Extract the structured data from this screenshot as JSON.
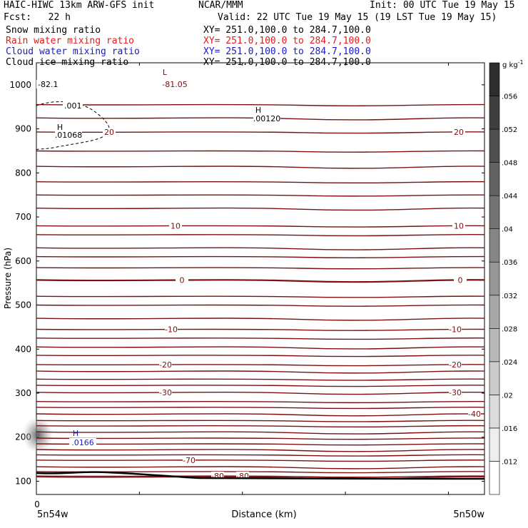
{
  "header": {
    "title_left": "HAIC-HIWC 13km ARW-GFS init",
    "title_center": "NCAR/MMM",
    "init": "Init: 00 UTC Tue 19 May 15",
    "fcst": "Fcst:   22 h",
    "valid": "Valid: 22 UTC Tue 19 May 15 (19 LST Tue 19 May 15)",
    "fields": [
      {
        "name": "Snow mixing ratio",
        "xy": "XY= 251.0,100.0 to 284.7,100.0",
        "color": "#000000"
      },
      {
        "name": "Rain water mixing ratio",
        "xy": "XY= 251.0,100.0 to 284.7,100.0",
        "color": "#e41a1a"
      },
      {
        "name": "Cloud water mixing ratio",
        "xy": "XY= 251.0,100.0 to 284.7,100.0",
        "color": "#1a1acc"
      },
      {
        "name": "Cloud ice mixing ratio",
        "xy": "XY= 251.0,100.0 to 284.7,100.0",
        "color": "#000000"
      }
    ]
  },
  "chart_data": {
    "type": "contour",
    "ylabel": "Pressure (hPa)",
    "xlabel": "Distance (km)",
    "x_origin_label": "0",
    "x_left_label": "5n54w",
    "x_right_label": "5n50w",
    "ylim": [
      1050,
      70
    ],
    "y_ticks": [
      100,
      200,
      300,
      400,
      500,
      600,
      700,
      800,
      900,
      1000
    ],
    "colorbar": {
      "unit": "g kg",
      "unit_exp": "-1",
      "ticks": [
        ".012",
        ".016",
        ".02",
        ".024",
        ".028",
        ".032",
        ".036",
        ".04",
        ".044",
        ".048",
        ".052",
        ".056"
      ]
    },
    "temperature_contours": [
      {
        "label": "-80",
        "pressure": 112
      },
      {
        "label": "-70",
        "pressure": 148
      },
      {
        "label": "-40",
        "pressure": 253
      },
      {
        "label": "-30",
        "pressure": 302
      },
      {
        "label": "-20",
        "pressure": 365
      },
      {
        "label": "-10",
        "pressure": 445
      },
      {
        "label": "0",
        "pressure": 557
      },
      {
        "label": "10",
        "pressure": 680
      },
      {
        "label": "20",
        "pressure": 893
      }
    ],
    "extrema": [
      {
        "type": "L",
        "value": "-81.05",
        "color": "#7a1010"
      },
      {
        "type": "H",
        "value": ".00120",
        "color": "#000000"
      },
      {
        "type": "H",
        "value": ".01068",
        "color": "#000000"
      },
      {
        "type": "H",
        "value": ".0166",
        "color": "#1a1acc"
      }
    ],
    "other_labels": [
      {
        "text": "-82.1",
        "color": "#000000"
      },
      {
        "text": ".001",
        "color": "#000000"
      }
    ],
    "colors": {
      "temperature": "#7a1010",
      "ground": "#000000"
    }
  }
}
